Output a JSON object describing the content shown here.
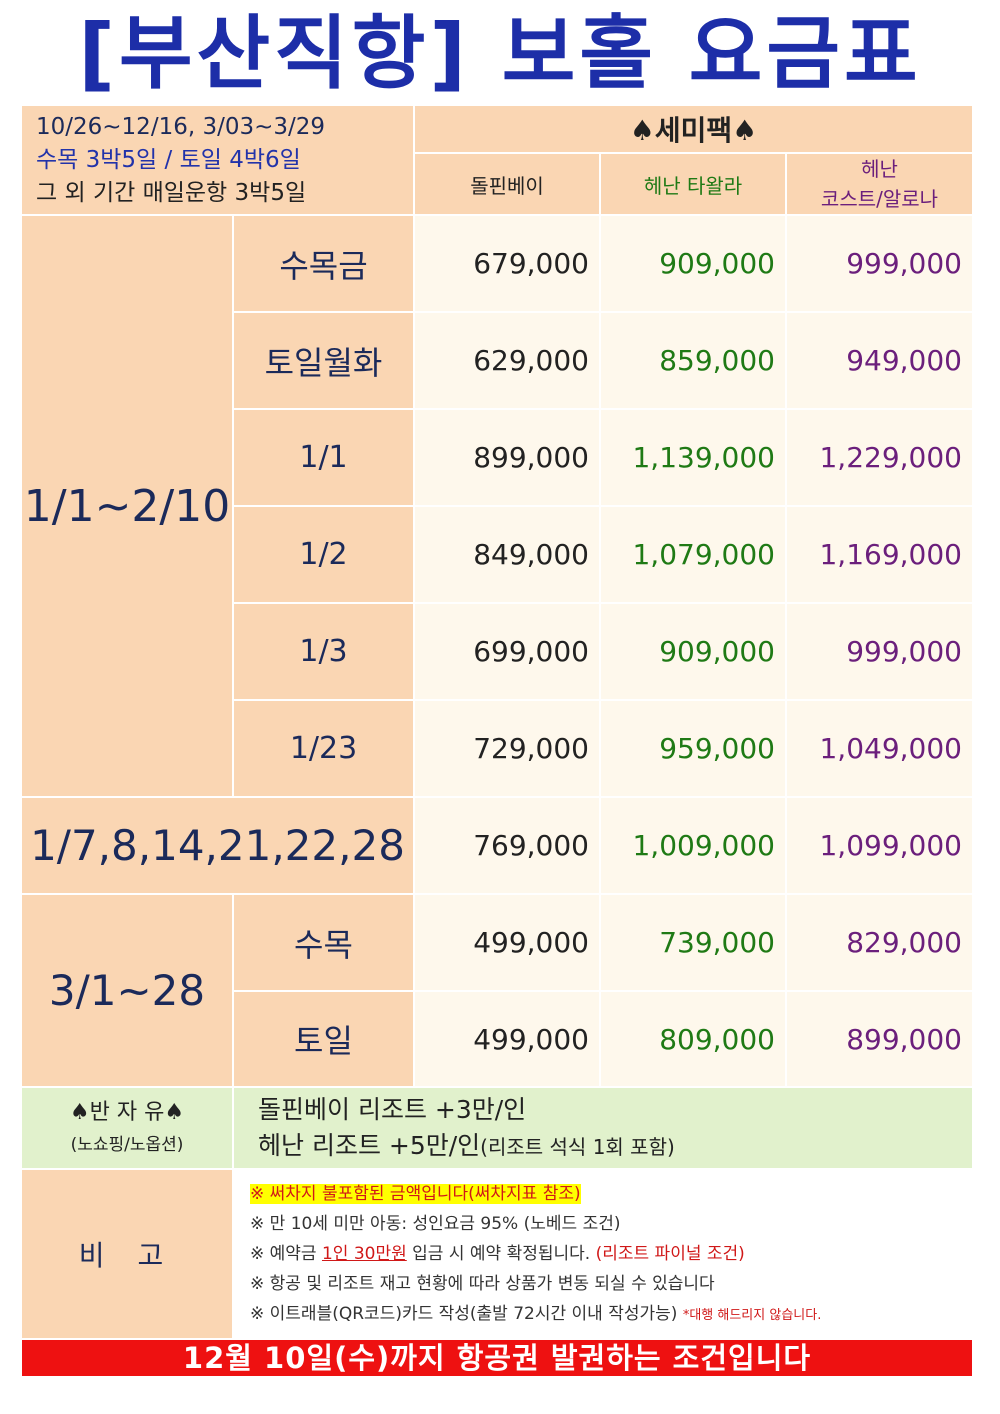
{
  "title": "[부산직항] 보홀 요금표",
  "header": {
    "period_lines": [
      "10/26~12/16, 3/03~3/29",
      "수목 3박5일 / 토일 4박6일",
      "그 외 기간 매일운항 3박5일"
    ],
    "package": "♠세미팩♠",
    "columns": [
      "돌핀베이",
      "헤난 타왈라",
      "헤난",
      "코스트/알로나"
    ]
  },
  "groups": {
    "jan": "1/1~2/10",
    "special": "1/7,8,14,21,22,28",
    "mar": "3/1~28"
  },
  "rows": [
    {
      "day": "수목금",
      "prices": [
        "679,000",
        "909,000",
        "999,000"
      ]
    },
    {
      "day": "토일월화",
      "prices": [
        "629,000",
        "859,000",
        "949,000"
      ]
    },
    {
      "day": "1/1",
      "prices": [
        "899,000",
        "1,139,000",
        "1,229,000"
      ]
    },
    {
      "day": "1/2",
      "prices": [
        "849,000",
        "1,079,000",
        "1,169,000"
      ]
    },
    {
      "day": "1/3",
      "prices": [
        "699,000",
        "909,000",
        "999,000"
      ]
    },
    {
      "day": "1/23",
      "prices": [
        "729,000",
        "959,000",
        "1,049,000"
      ]
    },
    {
      "day": "",
      "prices": [
        "769,000",
        "1,009,000",
        "1,099,000"
      ]
    },
    {
      "day": "수목",
      "prices": [
        "499,000",
        "739,000",
        "829,000"
      ]
    },
    {
      "day": "토일",
      "prices": [
        "499,000",
        "809,000",
        "899,000"
      ]
    }
  ],
  "free_time": {
    "title": "♠반 자 유♠",
    "subtitle": "(노쇼핑/노옵션)",
    "line1": "돌핀베이 리조트 +3만/인",
    "line2_a": "헤난 리조트 +5만/인",
    "line2_b": "(리조트 석식 1회 포함)"
  },
  "remarks": {
    "label": "비 고",
    "line1": "※ 써차지 불포함된 금액입니다(써차지표 참조)",
    "line2": "※ 만 10세 미만 아동: 성인요금 95% (노베드 조건)",
    "line3_a": "※ 예약금 ",
    "line3_b": "1인 30만원",
    "line3_c": " 입금 시 예약 확정됩니다. ",
    "line3_d": "(리조트 파이널 조건)",
    "line4": "※ 항공 및 리조트 재고 현황에 따라 상품가 변동 되실 수 있습니다",
    "line5_a": "※ 이트래블(QR코드)카드 작성(출발 72시간 이내 작성가능) ",
    "line5_b": "*대행 해드리지 않습니다."
  },
  "footer": "12월 10일(수)까지 항공권 발권하는 조건입니다",
  "colors": {
    "title": "#1d2ea8",
    "footer_bg": "#ee1111",
    "green": "#1f7a15",
    "purple": "#6b1f7c",
    "header_bg": "#fad6b3"
  }
}
